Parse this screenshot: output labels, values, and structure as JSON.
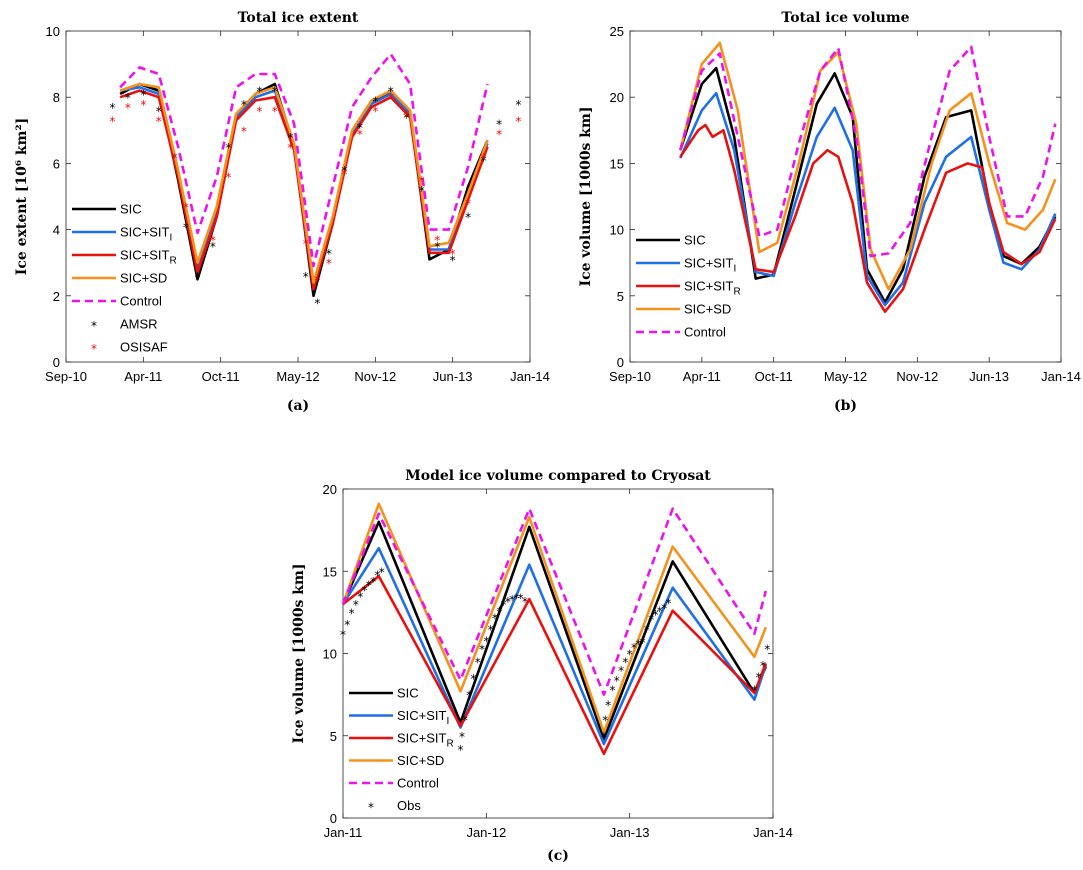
{
  "colors": {
    "SIC": "#000000",
    "SIC+SIT_I": "#1f6fe8",
    "SIC+SIT_R": "#e8110e",
    "SIC+SD": "#f5921e",
    "Control": "#ee10ee",
    "AMSR": "#000000",
    "OSISAF": "#e8110e",
    "Obs": "#000000"
  },
  "chart_data": [
    {
      "id": "a",
      "type": "line",
      "title": "Total ice extent",
      "ylabel": "Ice extent [10⁶ km²]",
      "xlabel": "",
      "sublabel": "(a)",
      "xticks": [
        "Sep-10",
        "Apr-11",
        "Oct-11",
        "May-12",
        "Nov-12",
        "Jun-13",
        "Jan-14"
      ],
      "xlim": [
        0,
        6
      ],
      "ylim": [
        0,
        10
      ],
      "yticks": [
        0,
        2,
        4,
        6,
        8,
        10
      ],
      "legend_position": "left",
      "legend": [
        "SIC",
        "SIC+SIT_I",
        "SIC+SIT_R",
        "SIC+SD",
        "Control",
        "AMSR",
        "OSISAF"
      ],
      "series": [
        {
          "name": "SIC",
          "style": "line",
          "x": [
            0.7,
            0.95,
            1.2,
            1.45,
            1.7,
            1.95,
            2.2,
            2.45,
            2.7,
            2.95,
            3.2,
            3.45,
            3.7,
            3.95,
            4.2,
            4.45,
            4.7,
            4.95,
            5.2,
            5.45,
            5.7,
            5.92
          ],
          "y": [
            8.1,
            8.4,
            8.2,
            5.5,
            2.5,
            4.4,
            7.4,
            8.1,
            8.4,
            6.5,
            2.0,
            4.2,
            6.9,
            7.8,
            8.2,
            7.5,
            3.1,
            3.4,
            5.3,
            6.7,
            null,
            null
          ]
        },
        {
          "name": "SIC+SIT_I",
          "style": "line",
          "x": [
            0.7,
            0.95,
            1.2,
            1.45,
            1.7,
            1.95,
            2.2,
            2.45,
            2.7,
            2.95,
            3.2,
            3.45,
            3.7,
            3.95,
            4.2,
            4.45,
            4.7,
            4.95,
            5.2,
            5.45,
            5.7,
            5.92
          ],
          "y": [
            8.2,
            8.3,
            8.1,
            5.7,
            2.9,
            4.6,
            7.4,
            8.0,
            8.2,
            6.5,
            2.3,
            4.3,
            6.9,
            7.8,
            8.1,
            7.5,
            3.4,
            3.4,
            5.0,
            6.6,
            null,
            null
          ]
        },
        {
          "name": "SIC+SIT_R",
          "style": "line",
          "x": [
            0.7,
            0.95,
            1.2,
            1.45,
            1.7,
            1.95,
            2.2,
            2.45,
            2.7,
            2.95,
            3.2,
            3.45,
            3.7,
            3.95,
            4.2,
            4.45,
            4.7,
            4.95,
            5.2,
            5.45,
            5.7,
            5.92
          ],
          "y": [
            8.0,
            8.2,
            8.0,
            5.6,
            2.7,
            4.4,
            7.3,
            7.9,
            8.0,
            6.4,
            2.2,
            4.2,
            6.8,
            7.7,
            8.0,
            7.4,
            3.3,
            3.3,
            4.9,
            6.5,
            null,
            null
          ]
        },
        {
          "name": "SIC+SD",
          "style": "line",
          "x": [
            0.7,
            0.95,
            1.2,
            1.45,
            1.7,
            1.95,
            2.2,
            2.45,
            2.7,
            2.95,
            3.2,
            3.45,
            3.7,
            3.95,
            4.2,
            4.45,
            4.7,
            4.95,
            5.2,
            5.45,
            5.7,
            5.92
          ],
          "y": [
            8.2,
            8.4,
            8.3,
            5.8,
            3.0,
            4.7,
            7.5,
            8.1,
            8.3,
            6.6,
            2.4,
            4.4,
            7.0,
            7.9,
            8.2,
            7.6,
            3.5,
            3.6,
            5.1,
            6.7,
            null,
            null
          ]
        },
        {
          "name": "Control",
          "style": "dash",
          "x": [
            0.7,
            0.95,
            1.2,
            1.45,
            1.7,
            1.95,
            2.2,
            2.45,
            2.7,
            2.95,
            3.2,
            3.45,
            3.7,
            3.95,
            4.2,
            4.45,
            4.7,
            4.95,
            5.2,
            5.45,
            5.7,
            5.92
          ],
          "y": [
            8.3,
            8.9,
            8.7,
            6.5,
            3.9,
            5.6,
            8.3,
            8.7,
            8.7,
            7.2,
            2.9,
            5.3,
            7.7,
            8.6,
            9.3,
            8.4,
            4.0,
            4.0,
            5.9,
            8.4,
            null,
            null
          ]
        },
        {
          "name": "AMSR",
          "style": "marker",
          "x": [
            0.6,
            0.8,
            1.0,
            1.2,
            1.4,
            1.55,
            1.7,
            1.9,
            2.1,
            2.3,
            2.5,
            2.7,
            2.9,
            3.1,
            3.25,
            3.4,
            3.6,
            3.8,
            4.0,
            4.2,
            4.4,
            4.6,
            4.8,
            5.0,
            5.2,
            5.4,
            5.6,
            5.85
          ],
          "y": [
            7.7,
            8.0,
            8.1,
            7.6,
            6.2,
            4.1,
            2.6,
            3.5,
            6.5,
            7.8,
            8.2,
            8.2,
            6.8,
            2.6,
            1.8,
            3.3,
            5.8,
            7.1,
            7.9,
            8.2,
            7.4,
            5.2,
            3.5,
            3.1,
            4.4,
            6.1,
            7.2,
            7.8
          ]
        },
        {
          "name": "OSISAF",
          "style": "marker",
          "x": [
            0.6,
            0.8,
            1.0,
            1.2,
            1.4,
            1.55,
            1.7,
            1.9,
            2.1,
            2.3,
            2.5,
            2.7,
            2.9,
            3.1,
            3.25,
            3.4,
            3.6,
            3.8,
            4.0,
            4.2,
            4.4,
            4.6,
            4.8,
            5.0,
            5.2,
            5.4,
            5.6,
            5.85
          ],
          "y": [
            7.3,
            7.7,
            7.8,
            7.3,
            6.2,
            4.7,
            2.8,
            3.7,
            5.6,
            7.0,
            7.6,
            7.6,
            6.5,
            3.6,
            2.5,
            3.0,
            5.7,
            6.9,
            7.6,
            8.0,
            7.5,
            5.5,
            3.7,
            3.3,
            4.8,
            6.2,
            6.9,
            7.3
          ]
        }
      ]
    },
    {
      "id": "b",
      "type": "line",
      "title": "Total ice volume",
      "ylabel": "Ice volume [1000s km]",
      "xlabel": "",
      "sublabel": "(b)",
      "xticks": [
        "Sep-10",
        "Apr-11",
        "Oct-11",
        "May-12",
        "Nov-12",
        "Jun-13",
        "Jan-14"
      ],
      "xlim": [
        0,
        6
      ],
      "ylim": [
        0,
        25
      ],
      "yticks": [
        0,
        5,
        10,
        15,
        20,
        25
      ],
      "legend_position": "center",
      "legend": [
        "SIC",
        "SIC+SIT_I",
        "SIC+SIT_R",
        "SIC+SD",
        "Control"
      ],
      "series": [
        {
          "name": "SIC",
          "style": "line",
          "x": [
            0.7,
            1.0,
            1.2,
            1.45,
            1.75,
            2.0,
            2.3,
            2.6,
            2.85,
            3.1,
            3.3,
            3.55,
            3.8,
            4.1,
            4.4,
            4.75,
            5.0,
            5.2,
            5.45,
            5.7,
            5.92
          ],
          "y": [
            16,
            21,
            22.2,
            17,
            6.3,
            6.6,
            13,
            19.5,
            21.8,
            18.5,
            7,
            4.5,
            7,
            14,
            18.5,
            19,
            12,
            8,
            7.4,
            8.7,
            11
          ]
        },
        {
          "name": "SIC+SIT_I",
          "style": "line",
          "x": [
            0.7,
            1.0,
            1.2,
            1.45,
            1.75,
            2.0,
            2.3,
            2.6,
            2.85,
            3.1,
            3.3,
            3.55,
            3.8,
            4.1,
            4.4,
            4.75,
            5.0,
            5.2,
            5.45,
            5.7,
            5.92
          ],
          "y": [
            15.4,
            19,
            20.3,
            16,
            6.8,
            6.5,
            12,
            17,
            19.2,
            16,
            6.5,
            4.3,
            6,
            12,
            15.5,
            17,
            11.5,
            7.5,
            7.0,
            8.5,
            11.2
          ]
        },
        {
          "name": "SIC+SIT_R",
          "style": "line",
          "x": [
            0.7,
            0.95,
            1.05,
            1.15,
            1.3,
            1.45,
            1.75,
            2.0,
            2.3,
            2.55,
            2.75,
            2.9,
            3.1,
            3.3,
            3.55,
            3.8,
            4.1,
            4.4,
            4.7,
            4.9,
            5.0,
            5.2,
            5.45,
            5.7,
            5.92
          ],
          "y": [
            15.5,
            17.5,
            17.9,
            17,
            17.5,
            14.5,
            7,
            6.8,
            11,
            15,
            16,
            15.5,
            12,
            6,
            3.8,
            5.5,
            10,
            14.3,
            15,
            14.7,
            12,
            8.3,
            7.4,
            8.3,
            10.8
          ]
        },
        {
          "name": "SIC+SD",
          "style": "line",
          "x": [
            0.7,
            1.0,
            1.25,
            1.5,
            1.8,
            2.05,
            2.35,
            2.65,
            2.9,
            3.15,
            3.35,
            3.6,
            3.9,
            4.2,
            4.45,
            4.75,
            5.0,
            5.25,
            5.5,
            5.75,
            5.92
          ],
          "y": [
            16,
            22.5,
            24.1,
            19,
            8.3,
            9,
            15,
            22,
            23.4,
            18,
            8.5,
            5.5,
            8.5,
            15,
            19,
            20.3,
            15,
            10.5,
            10,
            11.5,
            13.8
          ]
        },
        {
          "name": "Control",
          "style": "dash",
          "x": [
            0.7,
            1.0,
            1.25,
            1.5,
            1.8,
            2.05,
            2.35,
            2.65,
            2.9,
            3.15,
            3.35,
            3.6,
            3.9,
            4.2,
            4.45,
            4.75,
            5.0,
            5.25,
            5.5,
            5.75,
            5.92
          ],
          "y": [
            16,
            22,
            23.3,
            17,
            9.5,
            10,
            16.5,
            22,
            23.7,
            17,
            8,
            8.2,
            10.5,
            17,
            22,
            23.8,
            17,
            11,
            11,
            14,
            18
          ]
        }
      ]
    },
    {
      "id": "c",
      "type": "line",
      "title": "Model ice volume compared to Cryosat",
      "ylabel": "Ice volume [1000s km]",
      "xlabel": "",
      "sublabel": "(c)",
      "xticks": [
        "Jan-11",
        "Jan-12",
        "Jan-13",
        "Jan-14"
      ],
      "xlim": [
        0,
        3
      ],
      "ylim": [
        0,
        20
      ],
      "yticks": [
        0,
        5,
        10,
        15,
        20
      ],
      "legend_position": "bottom-left",
      "legend": [
        "SIC",
        "SIC+SIT_I",
        "SIC+SIT_R",
        "SIC+SD",
        "Control",
        "Obs"
      ],
      "series": [
        {
          "name": "SIC",
          "style": "line",
          "x": [
            0,
            0.25,
            0.82,
            1.3,
            1.82,
            2.3,
            2.87,
            2.95
          ],
          "y": [
            13,
            18,
            5.8,
            17.7,
            4.8,
            15.6,
            7.6,
            9.2
          ]
        },
        {
          "name": "SIC+SIT_I",
          "style": "line",
          "x": [
            0,
            0.25,
            0.82,
            1.3,
            1.82,
            2.3,
            2.87,
            2.95
          ],
          "y": [
            13,
            16.4,
            5.5,
            15.4,
            4.5,
            14,
            7.2,
            9.3
          ]
        },
        {
          "name": "SIC+SIT_R",
          "style": "line",
          "x": [
            0,
            0.25,
            0.82,
            1.3,
            1.82,
            2.3,
            2.87,
            2.95
          ],
          "y": [
            13,
            14.7,
            5.6,
            13.3,
            3.9,
            12.6,
            7.6,
            9.4
          ]
        },
        {
          "name": "SIC+SD",
          "style": "line",
          "x": [
            0,
            0.25,
            0.82,
            1.3,
            1.82,
            2.3,
            2.87,
            2.95
          ],
          "y": [
            13,
            19.1,
            7.7,
            18.3,
            5.2,
            16.5,
            9.8,
            11.6
          ]
        },
        {
          "name": "Control",
          "style": "dash",
          "x": [
            0,
            0.25,
            0.82,
            1.3,
            1.82,
            2.3,
            2.87,
            2.95
          ],
          "y": [
            13,
            18.5,
            8.4,
            18.8,
            7.5,
            18.8,
            11.2,
            13.8
          ]
        },
        {
          "name": "Obs",
          "style": "marker",
          "x": [
            0.0,
            0.03,
            0.06,
            0.09,
            0.12,
            0.15,
            0.18,
            0.21,
            0.24,
            0.27,
            0.82,
            0.83,
            0.85,
            0.88,
            0.91,
            0.94,
            0.97,
            1.0,
            1.03,
            1.06,
            1.09,
            1.12,
            1.15,
            1.18,
            1.21,
            1.24,
            1.27,
            1.82,
            1.83,
            1.85,
            1.88,
            1.91,
            1.94,
            1.97,
            2.0,
            2.03,
            2.06,
            2.09,
            2.12,
            2.15,
            2.18,
            2.21,
            2.24,
            2.27,
            2.87,
            2.9,
            2.93,
            2.96
          ],
          "y": [
            11.2,
            11.8,
            12.5,
            13.0,
            13.5,
            13.9,
            14.2,
            14.4,
            14.8,
            15.0,
            4.2,
            5.0,
            6.0,
            7.5,
            8.5,
            9.5,
            10.3,
            10.8,
            11.5,
            12.2,
            12.6,
            13.0,
            13.2,
            13.3,
            13.4,
            13.4,
            13.2,
            5.0,
            6.0,
            6.9,
            7.8,
            8.4,
            9.0,
            9.5,
            10.0,
            10.4,
            10.6,
            10.7,
            11.5,
            12.1,
            12.4,
            12.6,
            12.8,
            13.1,
            7.8,
            8.6,
            9.3,
            10.3
          ]
        }
      ]
    }
  ]
}
